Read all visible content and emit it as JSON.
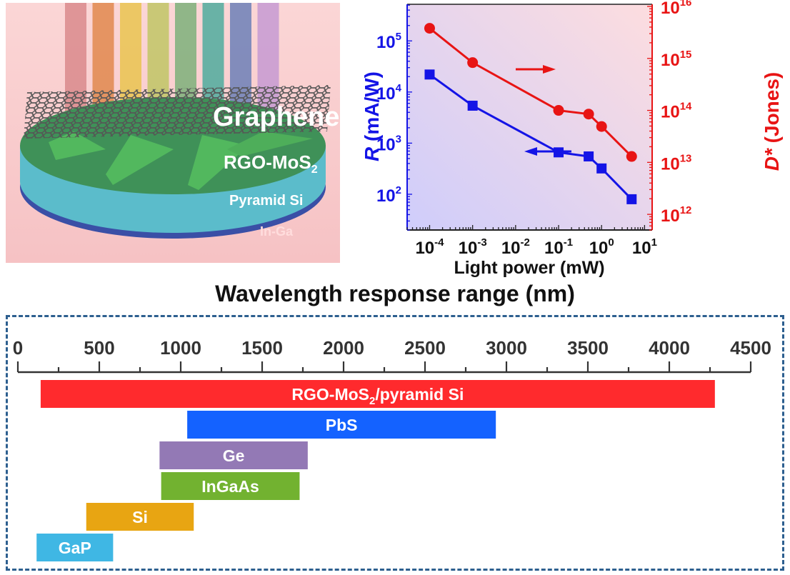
{
  "schematic": {
    "labels": {
      "graphene": "Graphene",
      "rgo_mos2": "RGO-MoS",
      "rgo_mos2_sub": "2",
      "pyramid_si": "Pyramid Si",
      "in_ga": "In-Ga"
    },
    "light_beam_colors": [
      "#d98a8c",
      "#e0884e",
      "#e9c450",
      "#bfc565",
      "#7cb07a",
      "#4fab9e",
      "#6c80b7",
      "#c59ad2"
    ],
    "layer_colors": {
      "rgo_mos2": "#3f9158",
      "pyramid": "#52b85e",
      "pyramid_si": "#5bbccb",
      "in_ga": "#3a4fa6",
      "graphene": "#4a4a4a"
    }
  },
  "chart_data": [
    {
      "type": "line",
      "title": "",
      "xlabel": "Light power (mW)",
      "xscale": "log",
      "xlim": [
        3e-05,
        15
      ],
      "x_ticks": [
        0.0001,
        0.001,
        0.01,
        0.1,
        1,
        10
      ],
      "x_tick_labels": [
        [
          "10",
          "-4"
        ],
        [
          "10",
          "-3"
        ],
        [
          "10",
          "-2"
        ],
        [
          "10",
          "-1"
        ],
        [
          "10",
          "0"
        ],
        [
          "10",
          "1"
        ]
      ],
      "y_left": {
        "label_italic": "R",
        "label_rest": " (mA/W)",
        "scale": "log",
        "lim": [
          20,
          520000
        ],
        "ticks": [
          100,
          1000,
          10000,
          100000
        ],
        "tick_labels": [
          [
            "10",
            "2"
          ],
          [
            "10",
            "3"
          ],
          [
            "10",
            "4"
          ],
          [
            "10",
            "5"
          ]
        ],
        "color": "#1414e6"
      },
      "y_right": {
        "label_italic": "D*",
        "label_rest": " (Jones)",
        "scale": "log",
        "lim": [
          500000000000,
          11000000000000000
        ],
        "ticks": [
          1000000000000,
          10000000000000,
          100000000000000,
          1000000000000000,
          10000000000000000
        ],
        "tick_labels": [
          [
            "10",
            "12"
          ],
          [
            "10",
            "13"
          ],
          [
            "10",
            "14"
          ],
          [
            "10",
            "15"
          ],
          [
            "10",
            "16"
          ]
        ],
        "color": "#e81414"
      },
      "series": [
        {
          "name": "R",
          "axis": "left",
          "marker": "square",
          "color": "#1414e6",
          "x": [
            0.0001,
            0.001,
            0.1,
            0.5,
            1,
            5
          ],
          "y": [
            22000,
            5400,
            660,
            550,
            320,
            80
          ]
        },
        {
          "name": "D*",
          "axis": "right",
          "marker": "circle",
          "color": "#e81414",
          "x": [
            0.0001,
            0.001,
            0.1,
            0.5,
            1,
            5
          ],
          "y": [
            3800000000000000,
            830000000000000,
            100000000000000,
            85000000000000,
            49000000000000,
            13000000000000
          ]
        }
      ],
      "annotations": [
        {
          "type": "arrow",
          "direction": "right",
          "meaning": "D* uses right axis",
          "color": "#e81414"
        },
        {
          "type": "arrow",
          "direction": "left",
          "meaning": "R uses left axis",
          "color": "#1414e6"
        }
      ],
      "background": {
        "left_color": "#cfcdfb",
        "right_color": "#fddddf"
      },
      "grid": false
    },
    {
      "type": "bar",
      "orientation": "horizontal-range",
      "title": "Wavelength response range (nm)",
      "xlim": [
        0,
        4500
      ],
      "x_ticks": [
        0,
        500,
        1000,
        1500,
        2000,
        2500,
        3000,
        3500,
        4000,
        4500
      ],
      "x_tick_labels": [
        "0",
        "500",
        "1000",
        "1500",
        "2000",
        "2500",
        "3000",
        "3500",
        "4000",
        "4500"
      ],
      "bars": [
        {
          "label": "RGO-MoS",
          "label_sub": "2",
          "label_after": "/pyramid Si",
          "start": 140,
          "end": 4280,
          "color": "#ff2a2d"
        },
        {
          "label": "PbS",
          "label_sub": "",
          "label_after": "",
          "start": 1040,
          "end": 2935,
          "color": "#1462ff"
        },
        {
          "label": "Ge",
          "label_sub": "",
          "label_after": "",
          "start": 870,
          "end": 1780,
          "color": "#9379b5"
        },
        {
          "label": "InGaAs",
          "label_sub": "",
          "label_after": "",
          "start": 880,
          "end": 1730,
          "color": "#72b230"
        },
        {
          "label": "Si",
          "label_sub": "",
          "label_after": "",
          "start": 420,
          "end": 1080,
          "color": "#e8a512"
        },
        {
          "label": "GaP",
          "label_sub": "",
          "label_after": "",
          "start": 115,
          "end": 585,
          "color": "#3fb7e4"
        }
      ]
    }
  ]
}
